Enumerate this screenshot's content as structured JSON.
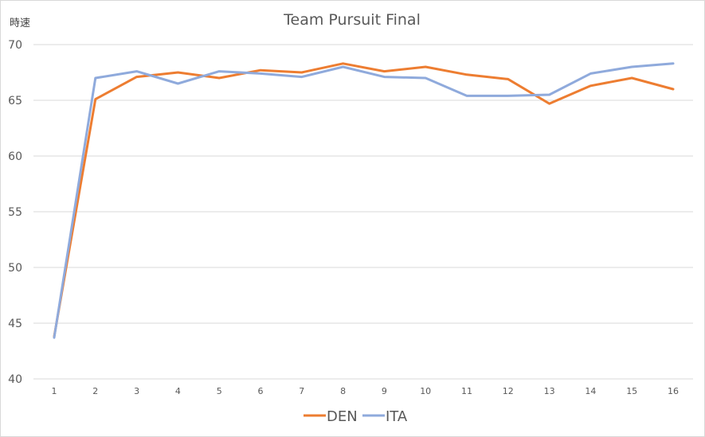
{
  "chart_data": {
    "type": "line",
    "title": "Team Pursuit Final",
    "xlabel": "",
    "ylabel": "時速",
    "categories": [
      "1",
      "2",
      "3",
      "4",
      "5",
      "6",
      "7",
      "8",
      "9",
      "10",
      "11",
      "12",
      "13",
      "14",
      "15",
      "16"
    ],
    "ylim": [
      40,
      70
    ],
    "yticks": [
      40,
      45,
      50,
      55,
      60,
      65,
      70
    ],
    "grid": true,
    "legend_position": "bottom",
    "series": [
      {
        "name": "DEN",
        "color": "#ed7d31",
        "values": [
          43.8,
          65.1,
          67.1,
          67.5,
          67.0,
          67.7,
          67.5,
          68.3,
          67.6,
          68.0,
          67.3,
          66.9,
          64.7,
          66.3,
          67.0,
          66.0
        ]
      },
      {
        "name": "ITA",
        "color": "#8faadc",
        "values": [
          43.7,
          67.0,
          67.6,
          66.5,
          67.6,
          67.4,
          67.1,
          68.0,
          67.1,
          67.0,
          65.4,
          65.4,
          65.5,
          67.4,
          68.0,
          68.3
        ]
      }
    ]
  }
}
